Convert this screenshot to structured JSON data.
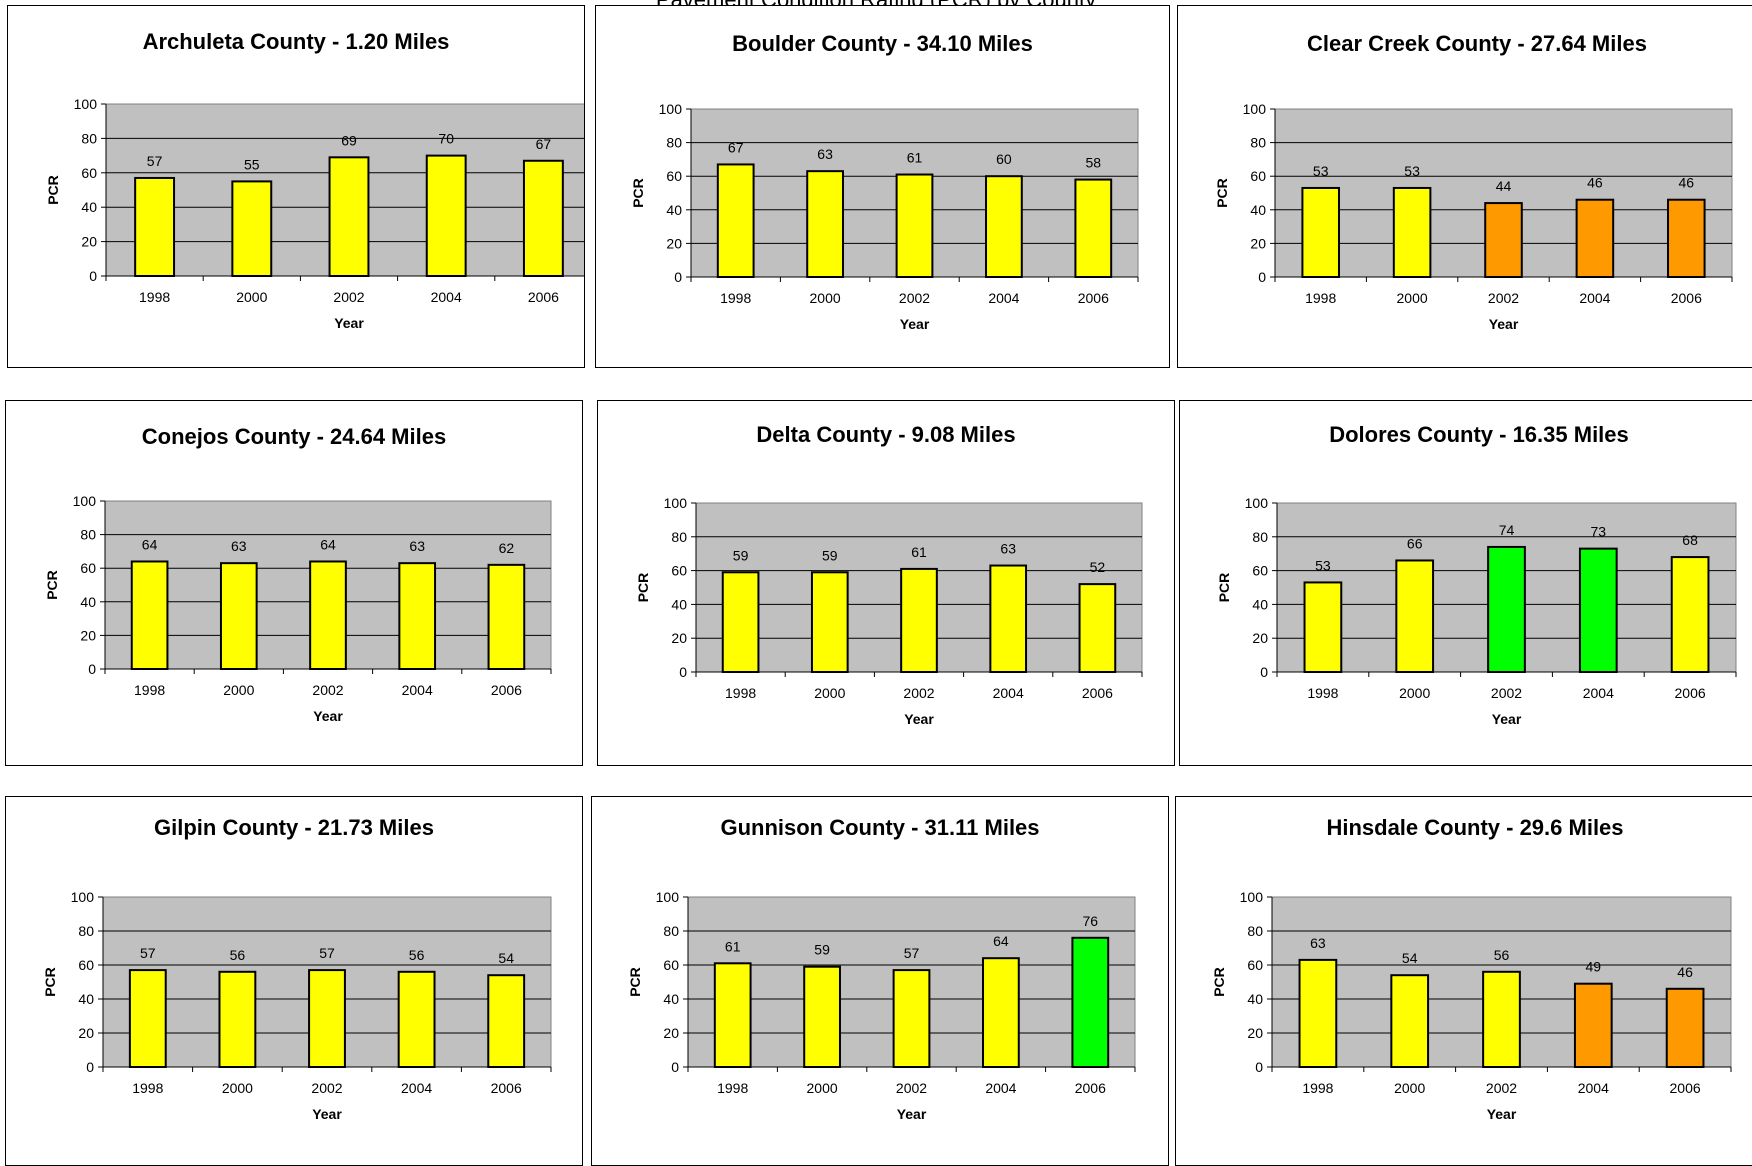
{
  "page_title": "Pavement Condition Rating (PCR) by County",
  "colors": {
    "plot_bg": "#c0c0c0",
    "good": "#00ff00",
    "fair": "#ffff00",
    "poor": "#ff9900",
    "bar_stroke": "#000000"
  },
  "chart_data": [
    {
      "type": "bar",
      "title": "Archuleta County - 1.20 Miles",
      "xlabel": "Year",
      "ylabel": "PCR",
      "ylim": [
        0,
        100
      ],
      "yticks": [
        0,
        20,
        40,
        60,
        80,
        100
      ],
      "categories": [
        "1998",
        "2000",
        "2002",
        "2004",
        "2006"
      ],
      "values": [
        57,
        55,
        69,
        70,
        67
      ],
      "bar_colors": [
        "#ffff00",
        "#ffff00",
        "#ffff00",
        "#ffff00",
        "#ffff00"
      ],
      "grid": true
    },
    {
      "type": "bar",
      "title": "Boulder County - 34.10 Miles",
      "xlabel": "Year",
      "ylabel": "PCR",
      "ylim": [
        0,
        100
      ],
      "yticks": [
        0,
        20,
        40,
        60,
        80,
        100
      ],
      "categories": [
        "1998",
        "2000",
        "2002",
        "2004",
        "2006"
      ],
      "values": [
        67,
        63,
        61,
        60,
        58
      ],
      "bar_colors": [
        "#ffff00",
        "#ffff00",
        "#ffff00",
        "#ffff00",
        "#ffff00"
      ],
      "grid": true
    },
    {
      "type": "bar",
      "title": "Clear Creek County - 27.64 Miles",
      "xlabel": "Year",
      "ylabel": "PCR",
      "ylim": [
        0,
        100
      ],
      "yticks": [
        0,
        20,
        40,
        60,
        80,
        100
      ],
      "categories": [
        "1998",
        "2000",
        "2002",
        "2004",
        "2006"
      ],
      "values": [
        53,
        53,
        44,
        46,
        46
      ],
      "bar_colors": [
        "#ffff00",
        "#ffff00",
        "#ff9900",
        "#ff9900",
        "#ff9900"
      ],
      "grid": true
    },
    {
      "type": "bar",
      "title": "Conejos County - 24.64 Miles",
      "xlabel": "Year",
      "ylabel": "PCR",
      "ylim": [
        0,
        100
      ],
      "yticks": [
        0,
        20,
        40,
        60,
        80,
        100
      ],
      "categories": [
        "1998",
        "2000",
        "2002",
        "2004",
        "2006"
      ],
      "values": [
        64,
        63,
        64,
        63,
        62
      ],
      "bar_colors": [
        "#ffff00",
        "#ffff00",
        "#ffff00",
        "#ffff00",
        "#ffff00"
      ],
      "grid": true
    },
    {
      "type": "bar",
      "title": "Delta County - 9.08 Miles",
      "xlabel": "Year",
      "ylabel": "PCR",
      "ylim": [
        0,
        100
      ],
      "yticks": [
        0,
        20,
        40,
        60,
        80,
        100
      ],
      "categories": [
        "1998",
        "2000",
        "2002",
        "2004",
        "2006"
      ],
      "values": [
        59,
        59,
        61,
        63,
        52
      ],
      "bar_colors": [
        "#ffff00",
        "#ffff00",
        "#ffff00",
        "#ffff00",
        "#ffff00"
      ],
      "grid": true
    },
    {
      "type": "bar",
      "title": "Dolores County - 16.35 Miles",
      "xlabel": "Year",
      "ylabel": "PCR",
      "ylim": [
        0,
        100
      ],
      "yticks": [
        0,
        20,
        40,
        60,
        80,
        100
      ],
      "categories": [
        "1998",
        "2000",
        "2002",
        "2004",
        "2006"
      ],
      "values": [
        53,
        66,
        74,
        73,
        68
      ],
      "bar_colors": [
        "#ffff00",
        "#ffff00",
        "#00ff00",
        "#00ff00",
        "#ffff00"
      ],
      "grid": true
    },
    {
      "type": "bar",
      "title": "Gilpin County - 21.73 Miles",
      "xlabel": "Year",
      "ylabel": "PCR",
      "ylim": [
        0,
        100
      ],
      "yticks": [
        0,
        20,
        40,
        60,
        80,
        100
      ],
      "categories": [
        "1998",
        "2000",
        "2002",
        "2004",
        "2006"
      ],
      "values": [
        57,
        56,
        57,
        56,
        54
      ],
      "bar_colors": [
        "#ffff00",
        "#ffff00",
        "#ffff00",
        "#ffff00",
        "#ffff00"
      ],
      "grid": true
    },
    {
      "type": "bar",
      "title": "Gunnison County - 31.11 Miles",
      "xlabel": "Year",
      "ylabel": "PCR",
      "ylim": [
        0,
        100
      ],
      "yticks": [
        0,
        20,
        40,
        60,
        80,
        100
      ],
      "categories": [
        "1998",
        "2000",
        "2002",
        "2004",
        "2006"
      ],
      "values": [
        61,
        59,
        57,
        64,
        76
      ],
      "bar_colors": [
        "#ffff00",
        "#ffff00",
        "#ffff00",
        "#ffff00",
        "#00ff00"
      ],
      "grid": true
    },
    {
      "type": "bar",
      "title": "Hinsdale County - 29.6 Miles",
      "xlabel": "Year",
      "ylabel": "PCR",
      "ylim": [
        0,
        100
      ],
      "yticks": [
        0,
        20,
        40,
        60,
        80,
        100
      ],
      "categories": [
        "1998",
        "2000",
        "2002",
        "2004",
        "2006"
      ],
      "values": [
        63,
        54,
        56,
        49,
        46
      ],
      "bar_colors": [
        "#ffff00",
        "#ffff00",
        "#ffff00",
        "#ff9900",
        "#ff9900"
      ],
      "grid": true
    }
  ]
}
